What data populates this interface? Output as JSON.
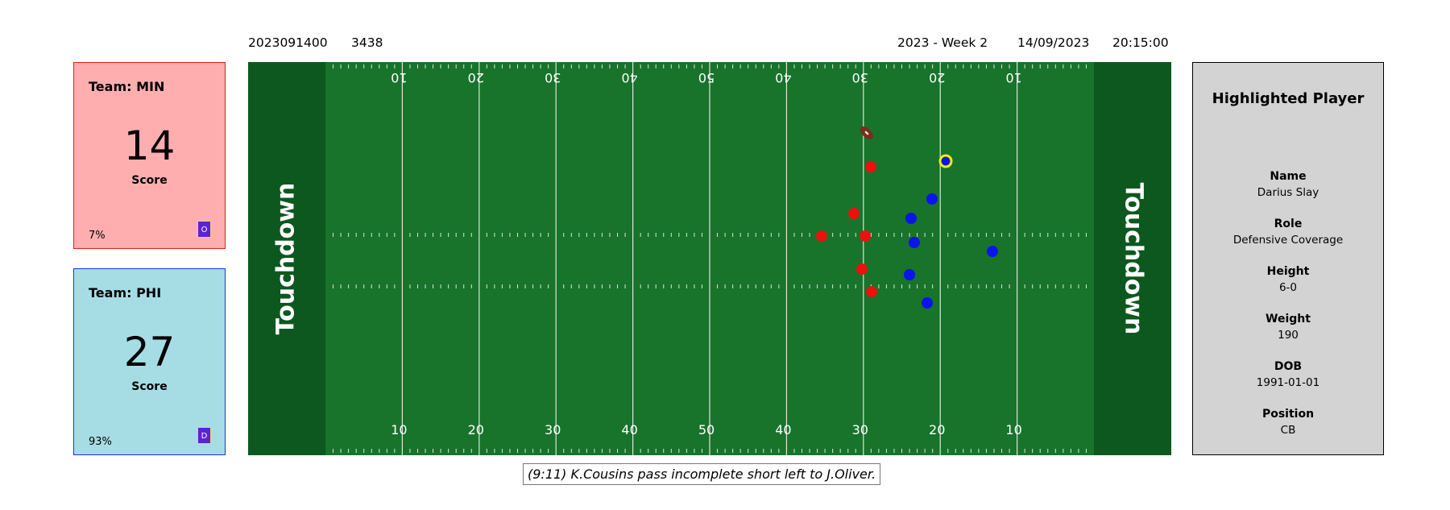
{
  "header": {
    "game_id": "2023091400",
    "play_id": "3438",
    "season_week": "2023 - Week 2",
    "date": "14/09/2023",
    "time": "20:15:00"
  },
  "teams": [
    {
      "title": "Team: MIN",
      "score": "14",
      "score_label": "Score",
      "win_pct": "7%",
      "side": "O",
      "color": "#ffaeb0",
      "border": "#e0201a"
    },
    {
      "title": "Team: PHI",
      "score": "27",
      "score_label": "Score",
      "win_pct": "93%",
      "side": "D",
      "color": "#a6dde5",
      "border": "#1e33d6"
    }
  ],
  "field": {
    "endzone_left": "Touchdown",
    "endzone_right": "Touchdown",
    "yard_numbers": [
      "10",
      "20",
      "30",
      "40",
      "50",
      "40",
      "30",
      "20",
      "10"
    ],
    "colors": {
      "grass": "#18732b",
      "endzone": "#0d581f",
      "offense": "#ee0f0f",
      "defense": "#0b14ee",
      "highlight": "#f5f000",
      "ball": "#7a2e1f"
    }
  },
  "highlighted_player": {
    "title": "Highlighted Player",
    "fields": [
      {
        "label": "Name",
        "value": "Darius Slay"
      },
      {
        "label": "Role",
        "value": "Defensive Coverage"
      },
      {
        "label": "Height",
        "value": "6-0"
      },
      {
        "label": "Weight",
        "value": "190"
      },
      {
        "label": "DOB",
        "value": "1991-01-01"
      },
      {
        "label": "Position",
        "value": "CB"
      }
    ]
  },
  "play_description": "(9:11) K.Cousins pass incomplete short left to J.Oliver."
}
